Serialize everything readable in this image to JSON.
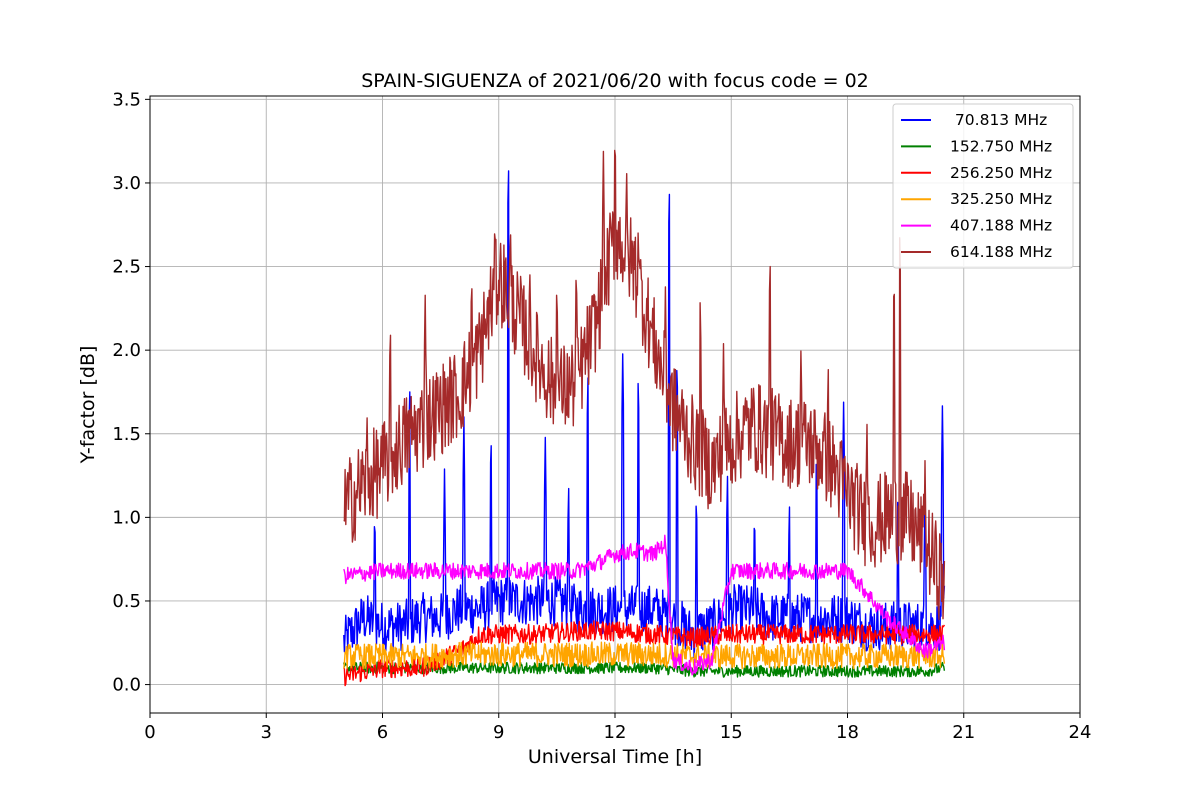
{
  "chart_data": {
    "type": "line",
    "title": "SPAIN-SIGUENZA of 2021/06/20 with focus code = 02",
    "xlabel": "Universal Time [h]",
    "ylabel": "Y-factor [dB]",
    "xlim": [
      0,
      24
    ],
    "ylim": [
      -0.17,
      3.52
    ],
    "xticks": [
      0,
      3,
      6,
      9,
      12,
      15,
      18,
      21,
      24
    ],
    "yticks": [
      0.0,
      0.5,
      1.0,
      1.5,
      2.0,
      2.5,
      3.0,
      3.5
    ],
    "ytick_labels": [
      "0.0",
      "0.5",
      "1.0",
      "1.5",
      "2.0",
      "2.5",
      "3.0",
      "3.5"
    ],
    "grid": true,
    "legend_position": "top-right",
    "series": [
      {
        "name": " 70.813 MHz",
        "color": "#0000ff",
        "x": [
          5.0,
          5.5,
          6.0,
          6.5,
          7.0,
          7.5,
          8.0,
          8.5,
          9.0,
          9.2,
          9.5,
          10.0,
          10.5,
          11.0,
          11.5,
          12.0,
          12.5,
          13.0,
          13.5,
          14.0,
          14.5,
          15.0,
          15.5,
          16.0,
          16.5,
          17.0,
          17.5,
          18.0,
          18.5,
          19.0,
          19.5,
          20.0,
          20.4,
          20.5
        ],
        "y": [
          0.25,
          0.4,
          0.35,
          0.35,
          0.4,
          0.4,
          0.45,
          0.45,
          0.5,
          0.5,
          0.5,
          0.5,
          0.5,
          0.45,
          0.45,
          0.45,
          0.45,
          0.45,
          0.4,
          0.3,
          0.35,
          0.45,
          0.45,
          0.4,
          0.4,
          0.4,
          0.4,
          0.4,
          0.35,
          0.35,
          0.35,
          0.35,
          0.35,
          0.45
        ],
        "peaks": [
          [
            5.8,
            1.1
          ],
          [
            6.7,
            1.85
          ],
          [
            7.6,
            1.3
          ],
          [
            8.1,
            1.6
          ],
          [
            8.8,
            1.55
          ],
          [
            9.25,
            3.15
          ],
          [
            10.2,
            1.5
          ],
          [
            10.8,
            1.25
          ],
          [
            11.3,
            1.9
          ],
          [
            12.2,
            2.0
          ],
          [
            12.6,
            1.9
          ],
          [
            13.4,
            3.02
          ],
          [
            13.6,
            2.0
          ],
          [
            14.1,
            1.2
          ],
          [
            14.9,
            1.3
          ],
          [
            15.6,
            1.1
          ],
          [
            16.5,
            1.15
          ],
          [
            17.2,
            1.45
          ],
          [
            17.9,
            1.7
          ],
          [
            19.3,
            1.2
          ],
          [
            20.0,
            1.2
          ],
          [
            20.45,
            1.7
          ]
        ]
      },
      {
        "name": "152.750 MHz",
        "color": "#008000",
        "x": [
          5.0,
          6.0,
          7.0,
          8.0,
          9.0,
          10.0,
          11.0,
          12.0,
          13.0,
          14.0,
          15.0,
          16.0,
          17.0,
          18.0,
          19.0,
          20.0,
          20.5
        ],
        "y": [
          0.1,
          0.1,
          0.1,
          0.1,
          0.1,
          0.1,
          0.1,
          0.1,
          0.1,
          0.08,
          0.08,
          0.08,
          0.08,
          0.08,
          0.08,
          0.08,
          0.1
        ]
      },
      {
        "name": "256.250 MHz",
        "color": "#ff0000",
        "x": [
          5.0,
          6.0,
          7.0,
          8.0,
          8.5,
          9.0,
          10.0,
          11.0,
          12.0,
          13.0,
          14.0,
          15.0,
          16.0,
          17.0,
          18.0,
          19.0,
          20.0,
          20.5
        ],
        "y": [
          0.05,
          0.1,
          0.1,
          0.2,
          0.3,
          0.3,
          0.3,
          0.32,
          0.32,
          0.3,
          0.28,
          0.3,
          0.3,
          0.3,
          0.3,
          0.3,
          0.3,
          0.3
        ]
      },
      {
        "name": "325.250 MHz",
        "color": "#ffa500",
        "x": [
          5.0,
          6.0,
          7.0,
          8.0,
          9.0,
          10.0,
          11.0,
          12.0,
          13.0,
          14.0,
          15.0,
          16.0,
          17.0,
          18.0,
          19.0,
          20.0,
          20.5
        ],
        "y": [
          0.17,
          0.17,
          0.17,
          0.18,
          0.18,
          0.18,
          0.18,
          0.18,
          0.18,
          0.17,
          0.17,
          0.17,
          0.17,
          0.17,
          0.17,
          0.17,
          0.17
        ]
      },
      {
        "name": "407.188 MHz",
        "color": "#ff00ff",
        "x": [
          5.0,
          6.0,
          7.0,
          8.0,
          9.0,
          10.0,
          11.0,
          11.5,
          12.0,
          12.5,
          13.0,
          13.3,
          13.5,
          14.0,
          14.5,
          15.0,
          16.0,
          17.0,
          18.0,
          18.5,
          19.0,
          20.0,
          20.5
        ],
        "y": [
          0.65,
          0.68,
          0.68,
          0.68,
          0.68,
          0.68,
          0.68,
          0.72,
          0.78,
          0.8,
          0.78,
          0.85,
          0.15,
          0.1,
          0.15,
          0.68,
          0.68,
          0.68,
          0.68,
          0.55,
          0.4,
          0.2,
          0.25
        ]
      },
      {
        "name": "614.188 MHz",
        "color": "#a52a2a",
        "x": [
          5.0,
          5.5,
          6.0,
          6.5,
          7.0,
          7.5,
          8.0,
          8.5,
          9.0,
          9.5,
          10.0,
          10.5,
          11.0,
          11.5,
          12.0,
          12.5,
          13.0,
          13.5,
          14.0,
          14.5,
          15.0,
          15.5,
          16.0,
          16.5,
          17.0,
          17.5,
          18.0,
          18.5,
          19.0,
          19.5,
          20.0,
          20.5
        ],
        "y": [
          1.05,
          1.2,
          1.3,
          1.45,
          1.55,
          1.65,
          1.75,
          2.0,
          2.45,
          2.2,
          1.95,
          1.75,
          1.8,
          2.15,
          2.7,
          2.5,
          2.05,
          1.65,
          1.45,
          1.3,
          1.45,
          1.55,
          1.5,
          1.45,
          1.45,
          1.35,
          1.15,
          0.95,
          1.0,
          1.0,
          0.85,
          0.6
        ],
        "peaks": [
          [
            5.6,
            1.65
          ],
          [
            6.2,
            2.2
          ],
          [
            7.1,
            2.35
          ],
          [
            8.3,
            2.5
          ],
          [
            8.9,
            2.85
          ],
          [
            9.3,
            2.8
          ],
          [
            9.8,
            2.55
          ],
          [
            10.5,
            2.45
          ],
          [
            11.0,
            2.55
          ],
          [
            11.7,
            3.2
          ],
          [
            12.0,
            3.35
          ],
          [
            12.3,
            3.1
          ],
          [
            12.6,
            2.8
          ],
          [
            13.3,
            2.4
          ],
          [
            14.2,
            2.35
          ],
          [
            14.8,
            2.05
          ],
          [
            16.0,
            2.6
          ],
          [
            16.8,
            2.05
          ],
          [
            17.5,
            1.95
          ],
          [
            18.5,
            1.6
          ],
          [
            19.2,
            2.5
          ],
          [
            19.35,
            2.75
          ],
          [
            20.0,
            1.35
          ]
        ]
      }
    ]
  }
}
